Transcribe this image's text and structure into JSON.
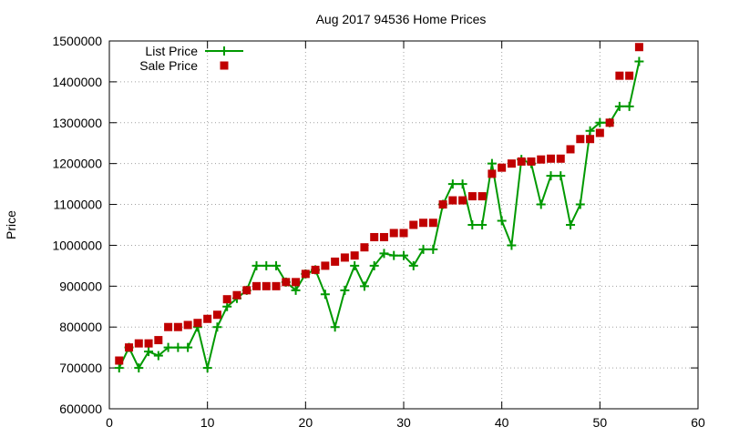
{
  "chart_data": {
    "type": "line",
    "title": "Aug 2017 94536 Home Prices",
    "xlabel": "",
    "ylabel": "Price",
    "xlim": [
      0,
      60
    ],
    "ylim": [
      600000,
      1500000
    ],
    "xticks": [
      0,
      10,
      20,
      30,
      40,
      50,
      60
    ],
    "yticks": [
      600000,
      700000,
      800000,
      900000,
      1000000,
      1100000,
      1200000,
      1300000,
      1400000,
      1500000
    ],
    "grid": true,
    "legend_position": "top-left",
    "series": [
      {
        "name": "List Price",
        "style": "line+cross",
        "color": "#009900",
        "x": [
          1,
          2,
          3,
          4,
          5,
          6,
          7,
          8,
          9,
          10,
          11,
          12,
          13,
          14,
          15,
          16,
          17,
          18,
          19,
          20,
          21,
          22,
          23,
          24,
          25,
          26,
          27,
          28,
          29,
          30,
          31,
          32,
          33,
          34,
          35,
          36,
          37,
          38,
          39,
          40,
          41,
          42,
          43,
          44,
          45,
          46,
          47,
          48,
          49,
          50,
          51,
          52,
          53,
          54
        ],
        "y": [
          700000,
          750000,
          700000,
          740000,
          730000,
          750000,
          750000,
          750000,
          800000,
          700000,
          800000,
          850000,
          870000,
          890000,
          950000,
          950000,
          950000,
          910000,
          890000,
          930000,
          940000,
          880000,
          800000,
          890000,
          950000,
          900000,
          950000,
          980000,
          975000,
          975000,
          950000,
          990000,
          990000,
          1100000,
          1150000,
          1150000,
          1050000,
          1050000,
          1200000,
          1060000,
          1000000,
          1210000,
          1200000,
          1100000,
          1170000,
          1170000,
          1050000,
          1100000,
          1280000,
          1300000,
          1300000,
          1340000,
          1340000,
          1450000
        ]
      },
      {
        "name": "Sale Price",
        "style": "square",
        "color": "#c00000",
        "x": [
          1,
          2,
          3,
          4,
          5,
          6,
          7,
          8,
          9,
          10,
          11,
          12,
          13,
          14,
          15,
          16,
          17,
          18,
          19,
          20,
          21,
          22,
          23,
          24,
          25,
          26,
          27,
          28,
          29,
          30,
          31,
          32,
          33,
          34,
          35,
          36,
          37,
          38,
          39,
          40,
          41,
          42,
          43,
          44,
          45,
          46,
          47,
          48,
          49,
          50,
          51,
          52,
          53,
          54
        ],
        "y": [
          718000,
          750000,
          760000,
          760000,
          768000,
          800000,
          800000,
          805000,
          810000,
          820000,
          830000,
          868000,
          878000,
          890000,
          900000,
          900000,
          900000,
          910000,
          910000,
          930000,
          940000,
          950000,
          960000,
          970000,
          975000,
          995000,
          1020000,
          1020000,
          1030000,
          1030000,
          1050000,
          1055000,
          1055000,
          1100000,
          1110000,
          1110000,
          1120000,
          1120000,
          1175000,
          1190000,
          1200000,
          1205000,
          1205000,
          1210000,
          1212000,
          1212000,
          1235000,
          1260000,
          1260000,
          1275000,
          1300000,
          1415000,
          1415000,
          1485000
        ]
      }
    ]
  }
}
